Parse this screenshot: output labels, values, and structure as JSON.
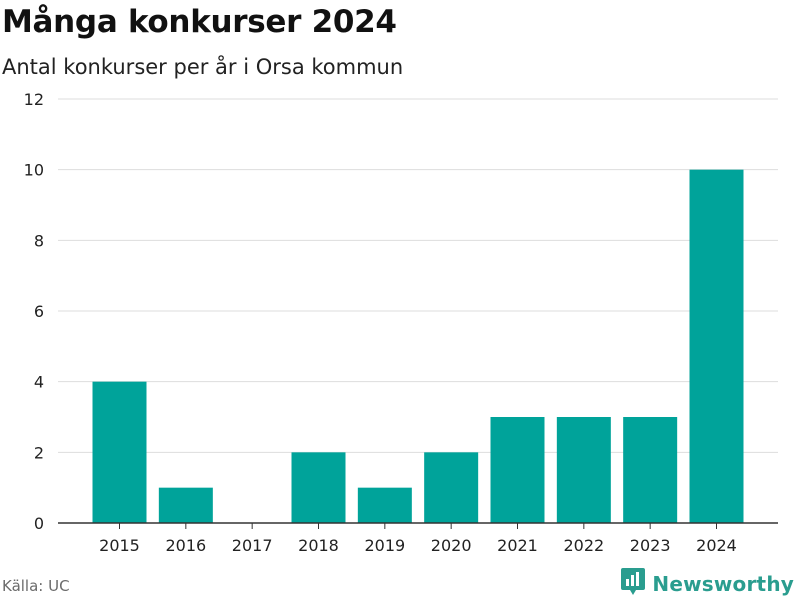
{
  "header": {
    "title": "Många konkurser 2024",
    "subtitle": "Antal konkurser per år i Orsa kommun"
  },
  "footer": {
    "source": "Källa: UC",
    "brand_name": "Newsworthy",
    "brand_icon": "newsworthy-logo-icon"
  },
  "colors": {
    "bar": "#00a39a",
    "grid": "#dddddd",
    "axis": "#333333",
    "brand": "#2a9d8f"
  },
  "chart_data": {
    "type": "bar",
    "title": "Många konkurser 2024",
    "subtitle": "Antal konkurser per år i Orsa kommun",
    "categories": [
      "2015",
      "2016",
      "2017",
      "2018",
      "2019",
      "2020",
      "2021",
      "2022",
      "2023",
      "2024"
    ],
    "values": [
      4,
      1,
      0,
      2,
      1,
      2,
      3,
      3,
      3,
      10
    ],
    "ylim": [
      0,
      12
    ],
    "yticks": [
      0,
      2,
      4,
      6,
      8,
      10,
      12
    ],
    "grid": true,
    "legend": false
  }
}
